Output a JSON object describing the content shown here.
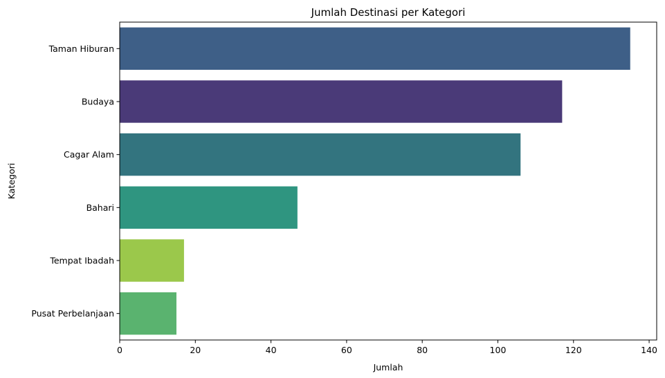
{
  "chart_data": {
    "type": "bar",
    "orientation": "horizontal",
    "title": "Jumlah Destinasi per Kategori",
    "xlabel": "Jumlah",
    "ylabel": "Kategori",
    "categories": [
      "Taman Hiburan",
      "Budaya",
      "Cagar Alam",
      "Bahari",
      "Tempat Ibadah",
      "Pusat Perbelanjaan"
    ],
    "values": [
      135,
      117,
      106,
      47,
      17,
      15
    ],
    "colors": [
      "#3e5f87",
      "#4a3a78",
      "#33747f",
      "#2f9580",
      "#9bc84b",
      "#5ab36f"
    ],
    "xlim": [
      0,
      142
    ],
    "xticks": [
      0,
      20,
      40,
      60,
      80,
      100,
      120,
      140
    ],
    "grid": false,
    "legend": "none"
  }
}
